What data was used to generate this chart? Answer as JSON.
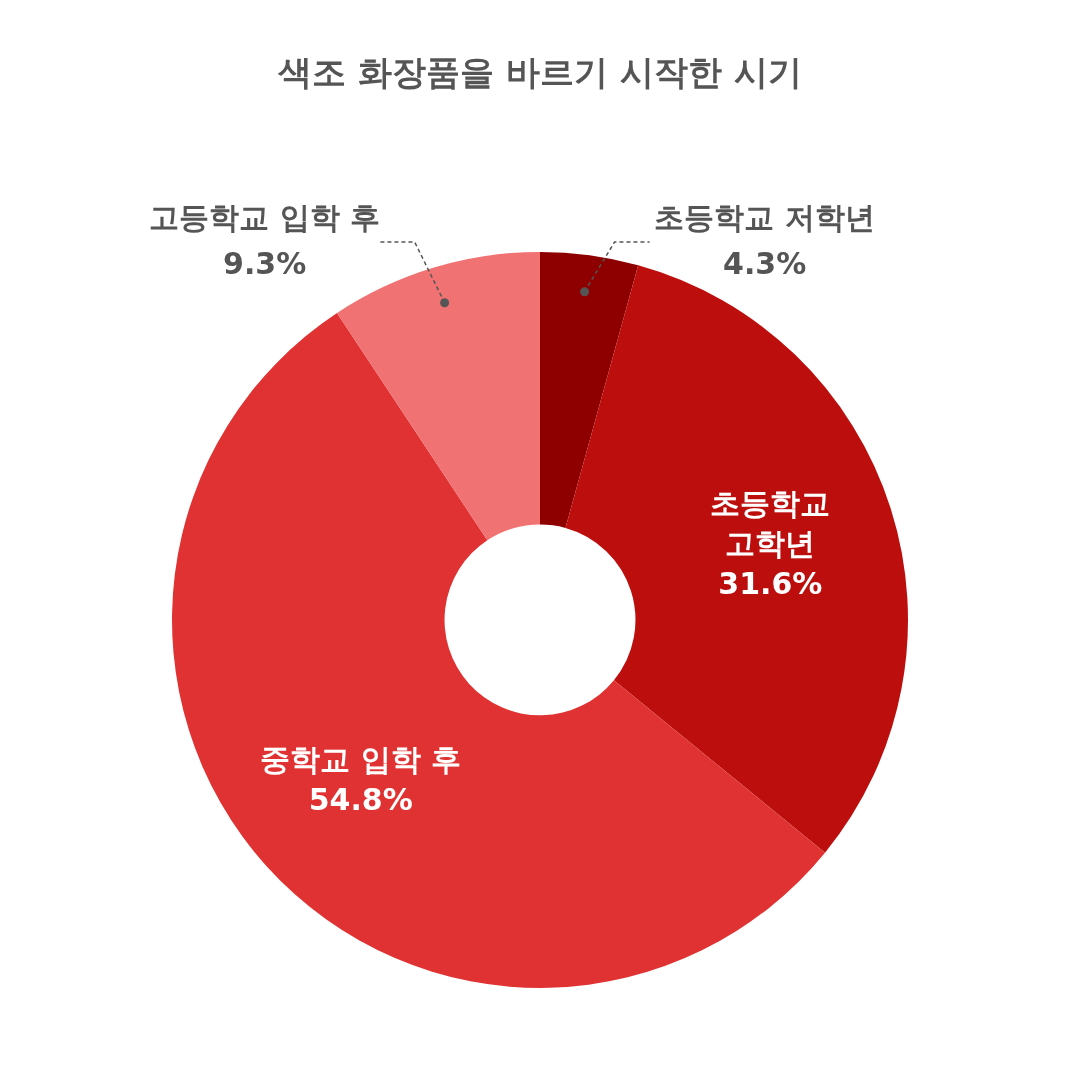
{
  "chart_data": {
    "type": "donut",
    "title": "색조 화장품을 바르기 시작한 시기",
    "categories": [
      "초등학교 저학년",
      "초등학교 고학년",
      "중학교 입학 후",
      "고등학교 입학 후"
    ],
    "values": [
      4.3,
      31.6,
      54.8,
      9.3
    ],
    "value_labels": [
      "4.3%",
      "31.6%",
      "54.8%",
      "9.3%"
    ],
    "colors": [
      "#8e0000",
      "#bd0e0e",
      "#e03232",
      "#f07272"
    ]
  }
}
